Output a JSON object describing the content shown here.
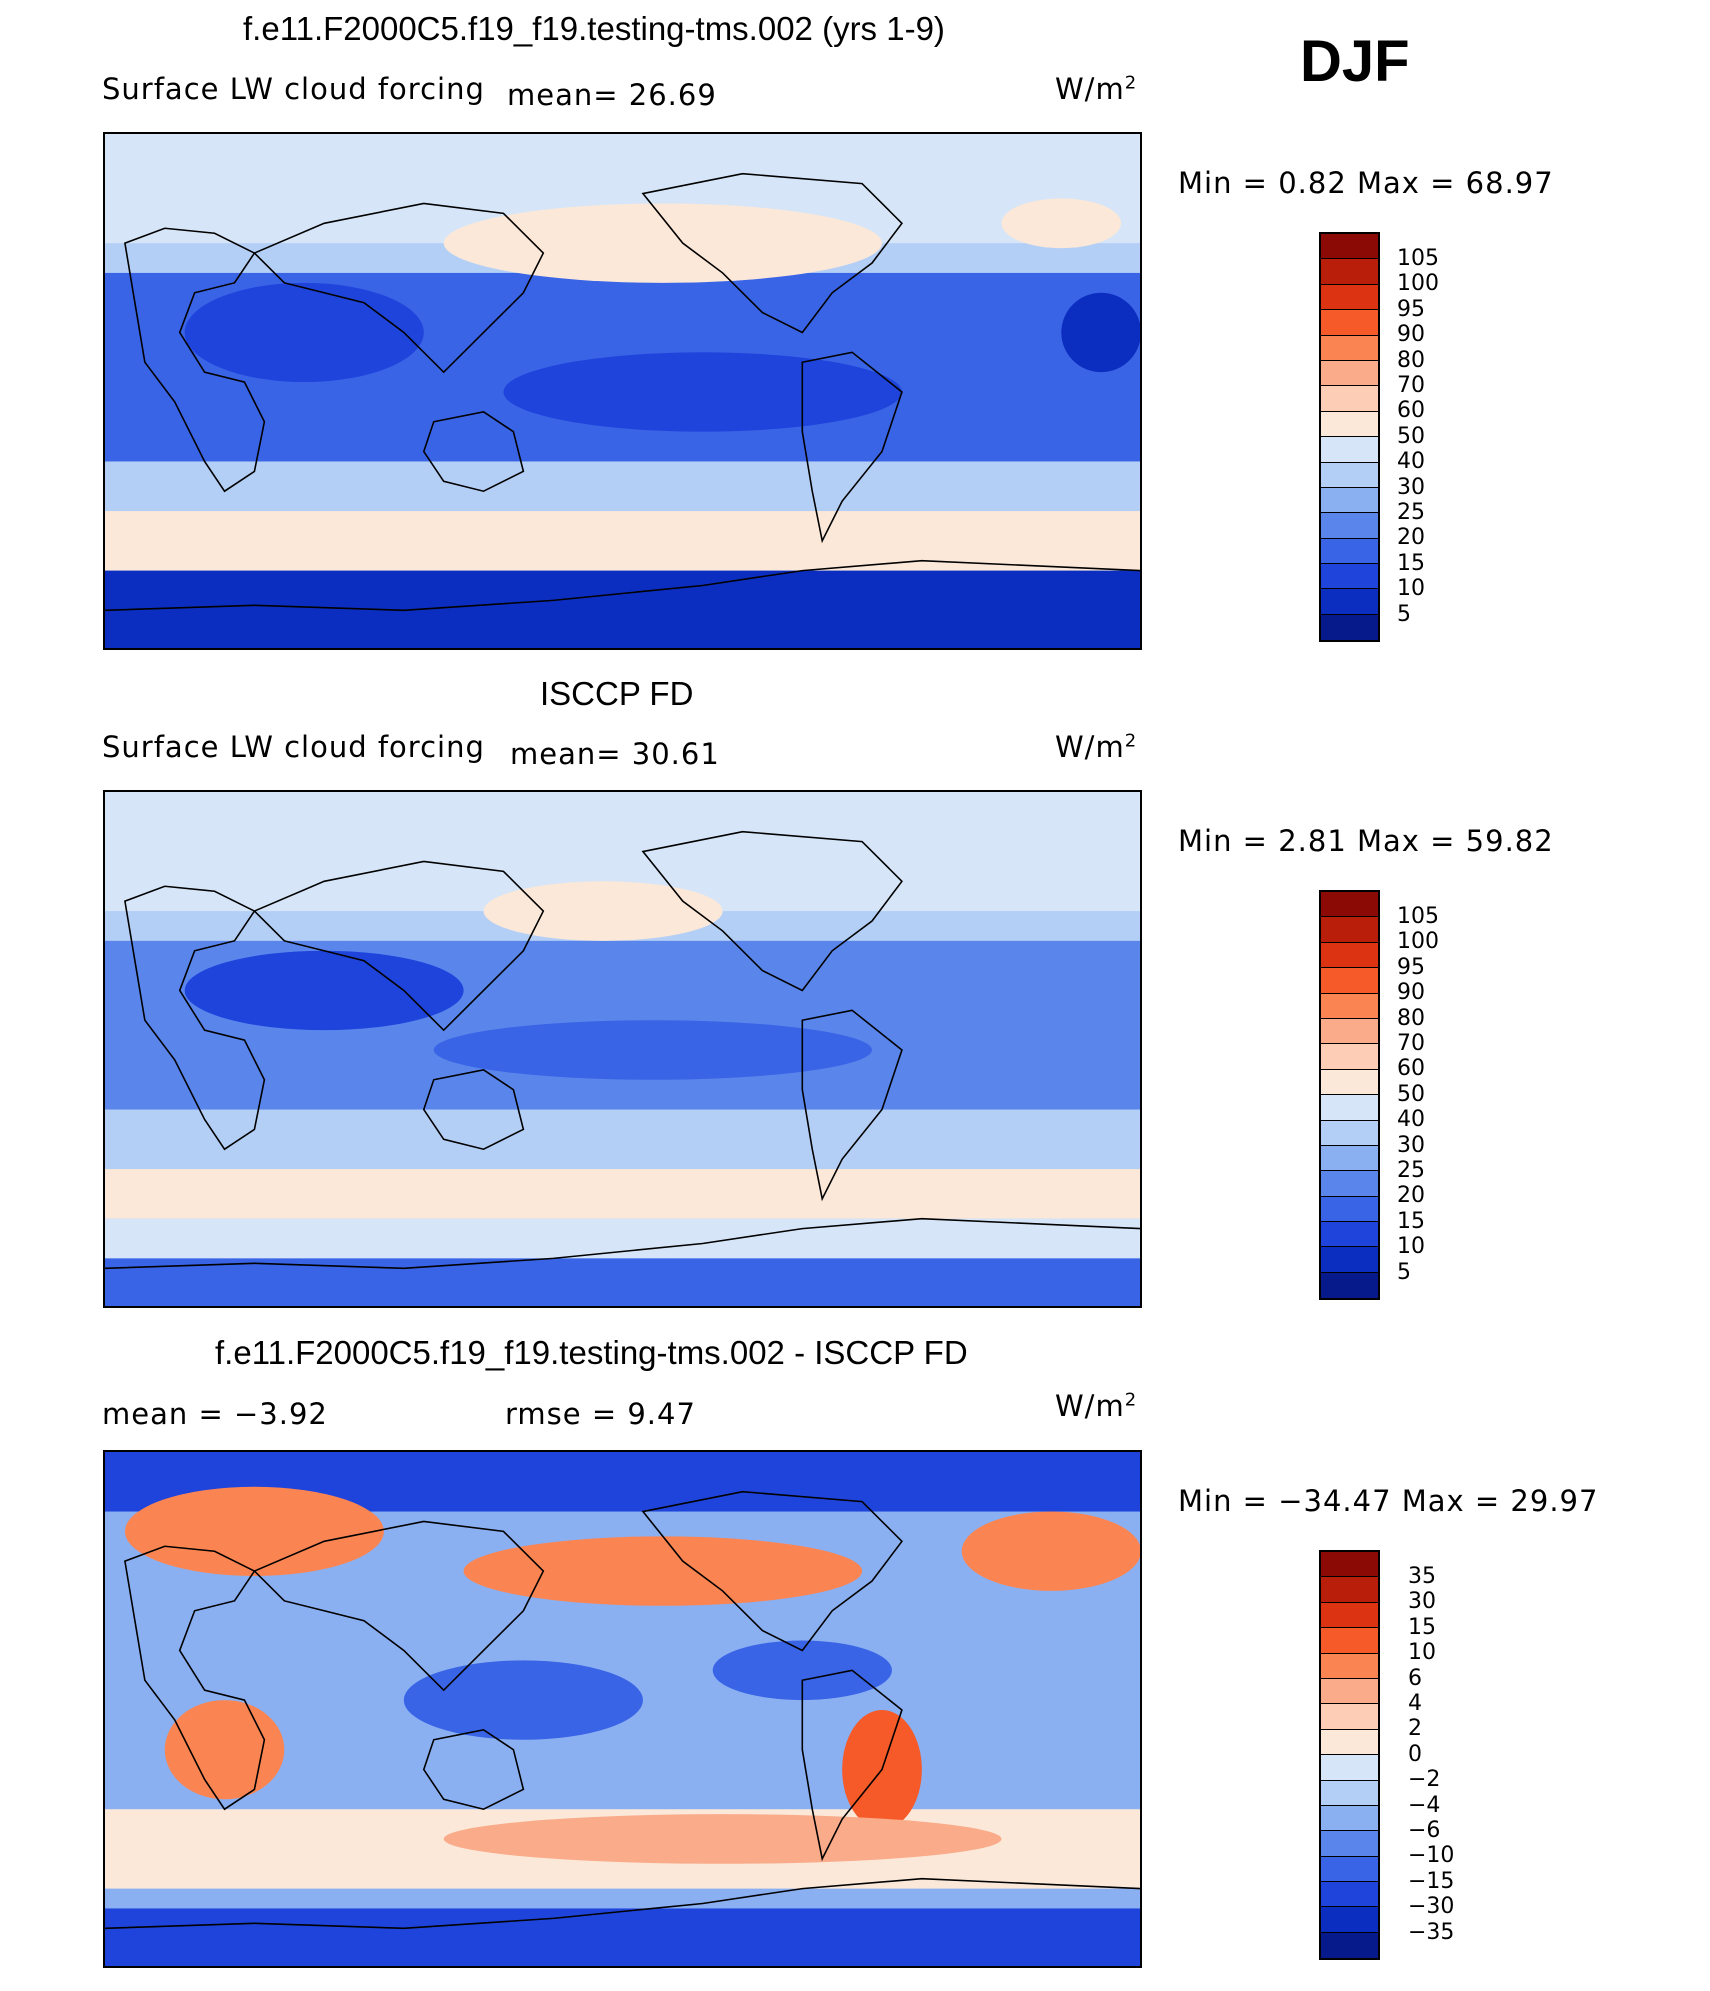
{
  "season": "DJF",
  "units_base": "W/m",
  "units_exp": "2",
  "panels": [
    {
      "title": "f.e11.F2000C5.f19_f19.testing-tms.002 (yrs 1-9)",
      "variable": "Surface LW cloud forcing",
      "stat1": "mean=   26.69",
      "minmax": "Min =     0.82  Max =     68.97",
      "labels": [
        "105",
        "100",
        "95",
        "90",
        "80",
        "70",
        "60",
        "50",
        "40",
        "30",
        "25",
        "20",
        "15",
        "10",
        "5"
      ]
    },
    {
      "title": "ISCCP FD",
      "variable": "Surface LW cloud forcing",
      "stat1": "mean=   30.61",
      "minmax": "Min =     2.81  Max =     59.82",
      "labels": [
        "105",
        "100",
        "95",
        "90",
        "80",
        "70",
        "60",
        "50",
        "40",
        "30",
        "25",
        "20",
        "15",
        "10",
        "5"
      ]
    },
    {
      "title": "f.e11.F2000C5.f19_f19.testing-tms.002 - ISCCP FD",
      "variable": "",
      "stat1": "mean =   −3.92",
      "stat2": "rmse =     9.47",
      "minmax": "Min = −34.47  Max =     29.97",
      "labels": [
        "35",
        "30",
        "15",
        "10",
        "6",
        "4",
        "2",
        "0",
        "−2",
        "−4",
        "−6",
        "−10",
        "−15",
        "−30",
        "−35"
      ]
    }
  ],
  "colors": {
    "scale": [
      "#8c0a05",
      "#b81e0a",
      "#dc3312",
      "#f55a28",
      "#fb8552",
      "#f9ab8a",
      "#fdcdb5",
      "#fbe8d8",
      "#d6e6f8",
      "#b4cff6",
      "#8ab0f2",
      "#5a86ec",
      "#3a64e6",
      "#1e44dc",
      "#0c2ec0",
      "#061a8c"
    ],
    "map_background_top": "#c9dcf6",
    "map_background_mid": "#2a54d8",
    "map_background_south": "#fbe3d2",
    "coast": "#000000"
  }
}
